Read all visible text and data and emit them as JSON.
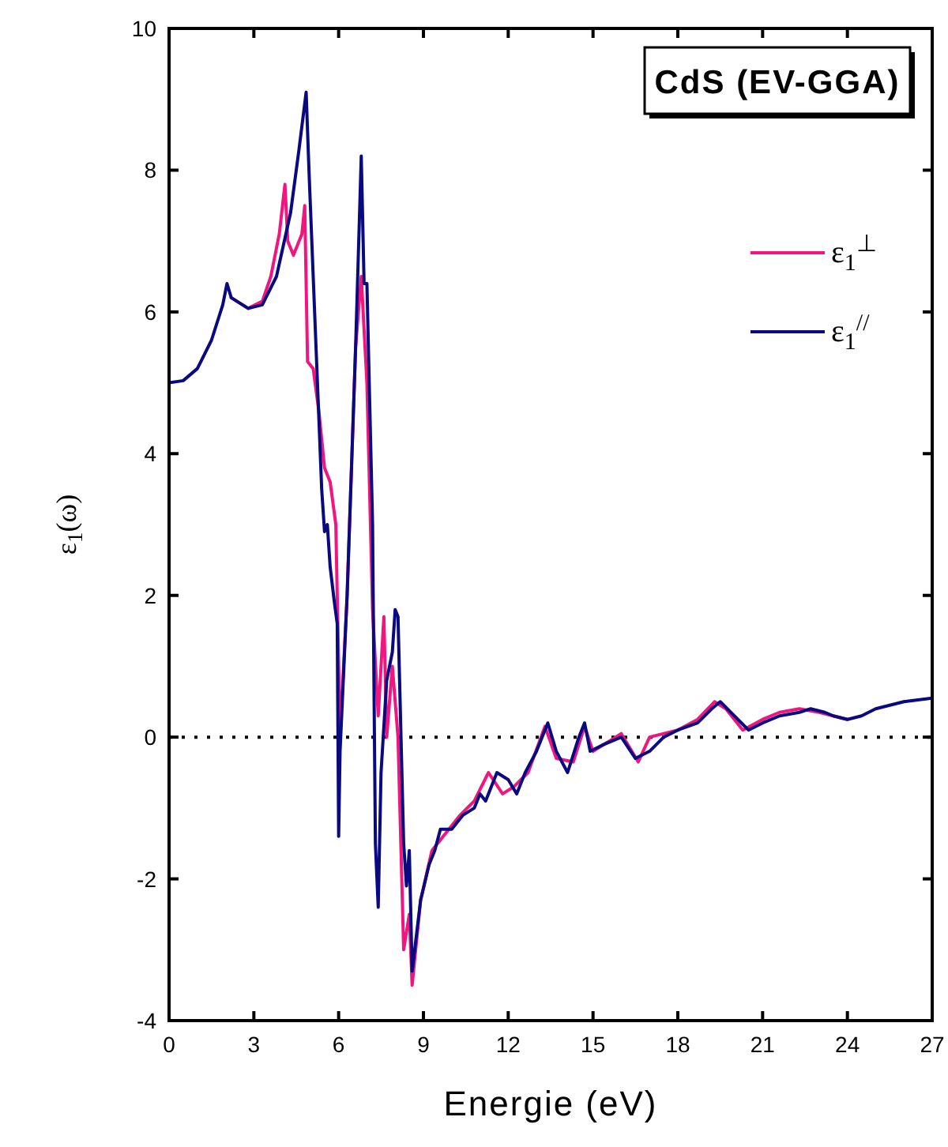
{
  "chart_data": {
    "type": "line",
    "title": "CdS (EV-GGA)",
    "xlabel": "Energie (eV)",
    "ylabel": "ε$_{1}$(ω)",
    "xlim": [
      0,
      27
    ],
    "xticks": [
      0,
      3,
      6,
      9,
      12,
      15,
      18,
      21,
      24,
      27
    ],
    "ylim": [
      -4,
      10
    ],
    "yticks": [
      -4,
      -2,
      0,
      2,
      4,
      6,
      8,
      10
    ],
    "grid": false,
    "legend": "top right",
    "line_style": "solid",
    "ref_lines": [
      {
        "axis": "y",
        "value": 0,
        "color": "#000000",
        "line_style": "dotted"
      }
    ],
    "series": [
      {
        "name": "ε$_{1}$$^{⊥}$",
        "color": "#f0157f",
        "x": [
          2.2,
          2.8,
          3.3,
          3.6,
          3.9,
          4.1,
          4.2,
          4.4,
          4.7,
          4.8,
          4.9,
          5.1,
          5.3,
          5.5,
          5.7,
          5.9,
          6.05,
          6.3,
          6.6,
          6.8,
          7.0,
          7.2,
          7.4,
          7.6,
          7.7,
          7.9,
          8.1,
          8.3,
          8.5,
          8.6,
          8.9,
          9.3,
          9.7,
          10.3,
          10.8,
          11.3,
          11.8,
          12.2,
          12.7,
          13.3,
          13.7,
          14.3,
          14.7,
          15.0,
          15.6,
          16.0,
          16.6,
          17.0,
          17.5,
          18.0,
          18.7,
          19.3,
          19.7,
          20.3,
          21.0,
          21.6,
          22.3,
          23.0,
          23.5,
          24.0
        ],
        "values": [
          6.2,
          6.05,
          6.15,
          6.5,
          7.1,
          7.8,
          7.0,
          6.8,
          7.1,
          7.5,
          5.3,
          5.2,
          4.6,
          3.8,
          3.6,
          3.0,
          0.0,
          2.0,
          5.5,
          6.5,
          5.0,
          1.8,
          0.3,
          1.7,
          0.0,
          1.0,
          0.0,
          -3.0,
          -2.5,
          -3.5,
          -2.3,
          -1.6,
          -1.4,
          -1.1,
          -0.9,
          -0.5,
          -0.8,
          -0.7,
          -0.5,
          0.15,
          -0.3,
          -0.35,
          0.15,
          -0.2,
          -0.05,
          0.05,
          -0.35,
          0.0,
          0.05,
          0.1,
          0.25,
          0.5,
          0.4,
          0.1,
          0.25,
          0.35,
          0.4,
          0.35,
          0.3,
          0.25
        ]
      },
      {
        "name": "ε$_{1}$$^{//}$",
        "color": "#0a0a80",
        "x": [
          0,
          0.5,
          1,
          1.5,
          1.9,
          2.05,
          2.2,
          2.8,
          3.3,
          3.8,
          4.3,
          4.6,
          4.85,
          4.95,
          5.2,
          5.4,
          5.5,
          5.6,
          5.7,
          5.85,
          5.95,
          6.0,
          6.05,
          6.3,
          6.6,
          6.8,
          6.9,
          7.0,
          7.2,
          7.3,
          7.4,
          7.5,
          7.7,
          7.9,
          8.0,
          8.1,
          8.3,
          8.4,
          8.5,
          8.6,
          8.9,
          9.2,
          9.4,
          9.6,
          10.0,
          10.4,
          10.8,
          11.0,
          11.2,
          11.6,
          12.0,
          12.3,
          12.6,
          13.0,
          13.4,
          13.7,
          14.1,
          14.5,
          14.7,
          14.9,
          15.4,
          16.0,
          16.5,
          17.0,
          17.5,
          18.0,
          18.7,
          19.2,
          19.5,
          20.0,
          20.5,
          21.0,
          21.6,
          22.3,
          22.7,
          23.2,
          23.5,
          24.0,
          24.5,
          25.0,
          26.0,
          27.0
        ],
        "values": [
          5.0,
          5.03,
          5.2,
          5.6,
          6.1,
          6.4,
          6.2,
          6.05,
          6.1,
          6.5,
          7.4,
          8.3,
          9.1,
          8.0,
          5.5,
          3.5,
          2.9,
          3.0,
          2.4,
          1.9,
          1.6,
          -1.4,
          -0.2,
          2.0,
          5.5,
          8.2,
          6.4,
          6.4,
          3.0,
          -1.5,
          -2.4,
          -0.5,
          0.8,
          1.2,
          1.8,
          1.7,
          -1.5,
          -2.1,
          -1.6,
          -3.3,
          -2.3,
          -1.8,
          -1.6,
          -1.3,
          -1.3,
          -1.1,
          -1.0,
          -0.8,
          -0.9,
          -0.5,
          -0.6,
          -0.8,
          -0.5,
          -0.2,
          0.2,
          -0.2,
          -0.5,
          0.0,
          0.2,
          -0.2,
          -0.1,
          0.0,
          -0.3,
          -0.2,
          0.0,
          0.1,
          0.2,
          0.4,
          0.5,
          0.3,
          0.1,
          0.2,
          0.3,
          0.35,
          0.4,
          0.35,
          0.3,
          0.25,
          0.3,
          0.4,
          0.5,
          0.55
        ]
      }
    ]
  }
}
